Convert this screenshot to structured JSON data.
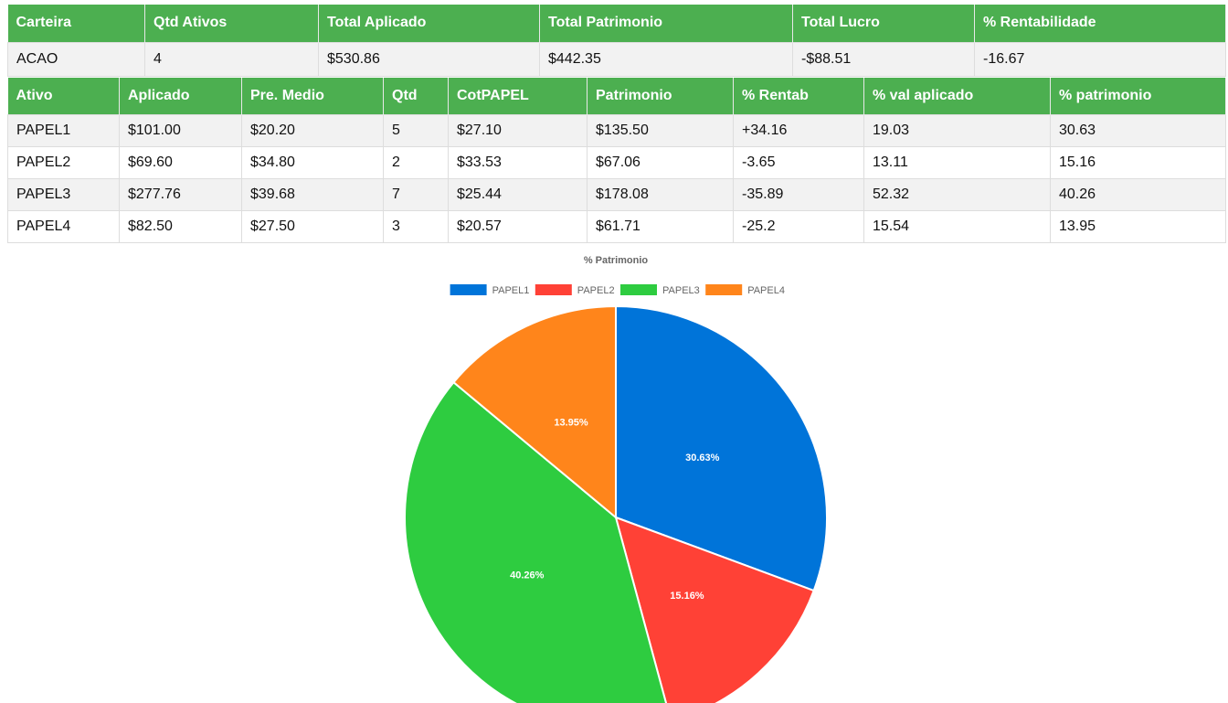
{
  "summary": {
    "headers": [
      "Carteira",
      "Qtd Ativos",
      "Total Aplicado",
      "Total Patrimonio",
      "Total Lucro",
      "% Rentabilidade"
    ],
    "row": [
      "ACAO",
      "4",
      "$530.86",
      "$442.35",
      "-$88.51",
      "-16.67"
    ]
  },
  "assets": {
    "headers": [
      "Ativo",
      "Aplicado",
      "Pre. Medio",
      "Qtd",
      "CotPAPEL",
      "Patrimonio",
      "% Rentab",
      "% val aplicado",
      "% patrimonio"
    ],
    "rows": [
      [
        "PAPEL1",
        "$101.00",
        "$20.20",
        "5",
        "$27.10",
        "$135.50",
        "+34.16",
        "19.03",
        "30.63"
      ],
      [
        "PAPEL2",
        "$69.60",
        "$34.80",
        "2",
        "$33.53",
        "$67.06",
        "-3.65",
        "13.11",
        "15.16"
      ],
      [
        "PAPEL3",
        "$277.76",
        "$39.68",
        "7",
        "$25.44",
        "$178.08",
        "-35.89",
        "52.32",
        "40.26"
      ],
      [
        "PAPEL4",
        "$82.50",
        "$27.50",
        "3",
        "$20.57",
        "$61.71",
        "-25.2",
        "15.54",
        "13.95"
      ]
    ]
  },
  "colors": {
    "header_bg": "#4CAF50",
    "header_text": "#ffffff",
    "odd_row": "#f2f2f2",
    "border": "#dddddd"
  },
  "chart_data": {
    "type": "pie",
    "title": "% Patrimonio",
    "legend_position": "top",
    "categories": [
      "PAPEL1",
      "PAPEL2",
      "PAPEL3",
      "PAPEL4"
    ],
    "values": [
      30.63,
      15.16,
      40.26,
      13.95
    ],
    "labels": [
      "30.63%",
      "15.16%",
      "40.26%",
      "13.95%"
    ],
    "colors": [
      "#0074D9",
      "#FF4136",
      "#2ECC40",
      "#FF851B"
    ]
  }
}
